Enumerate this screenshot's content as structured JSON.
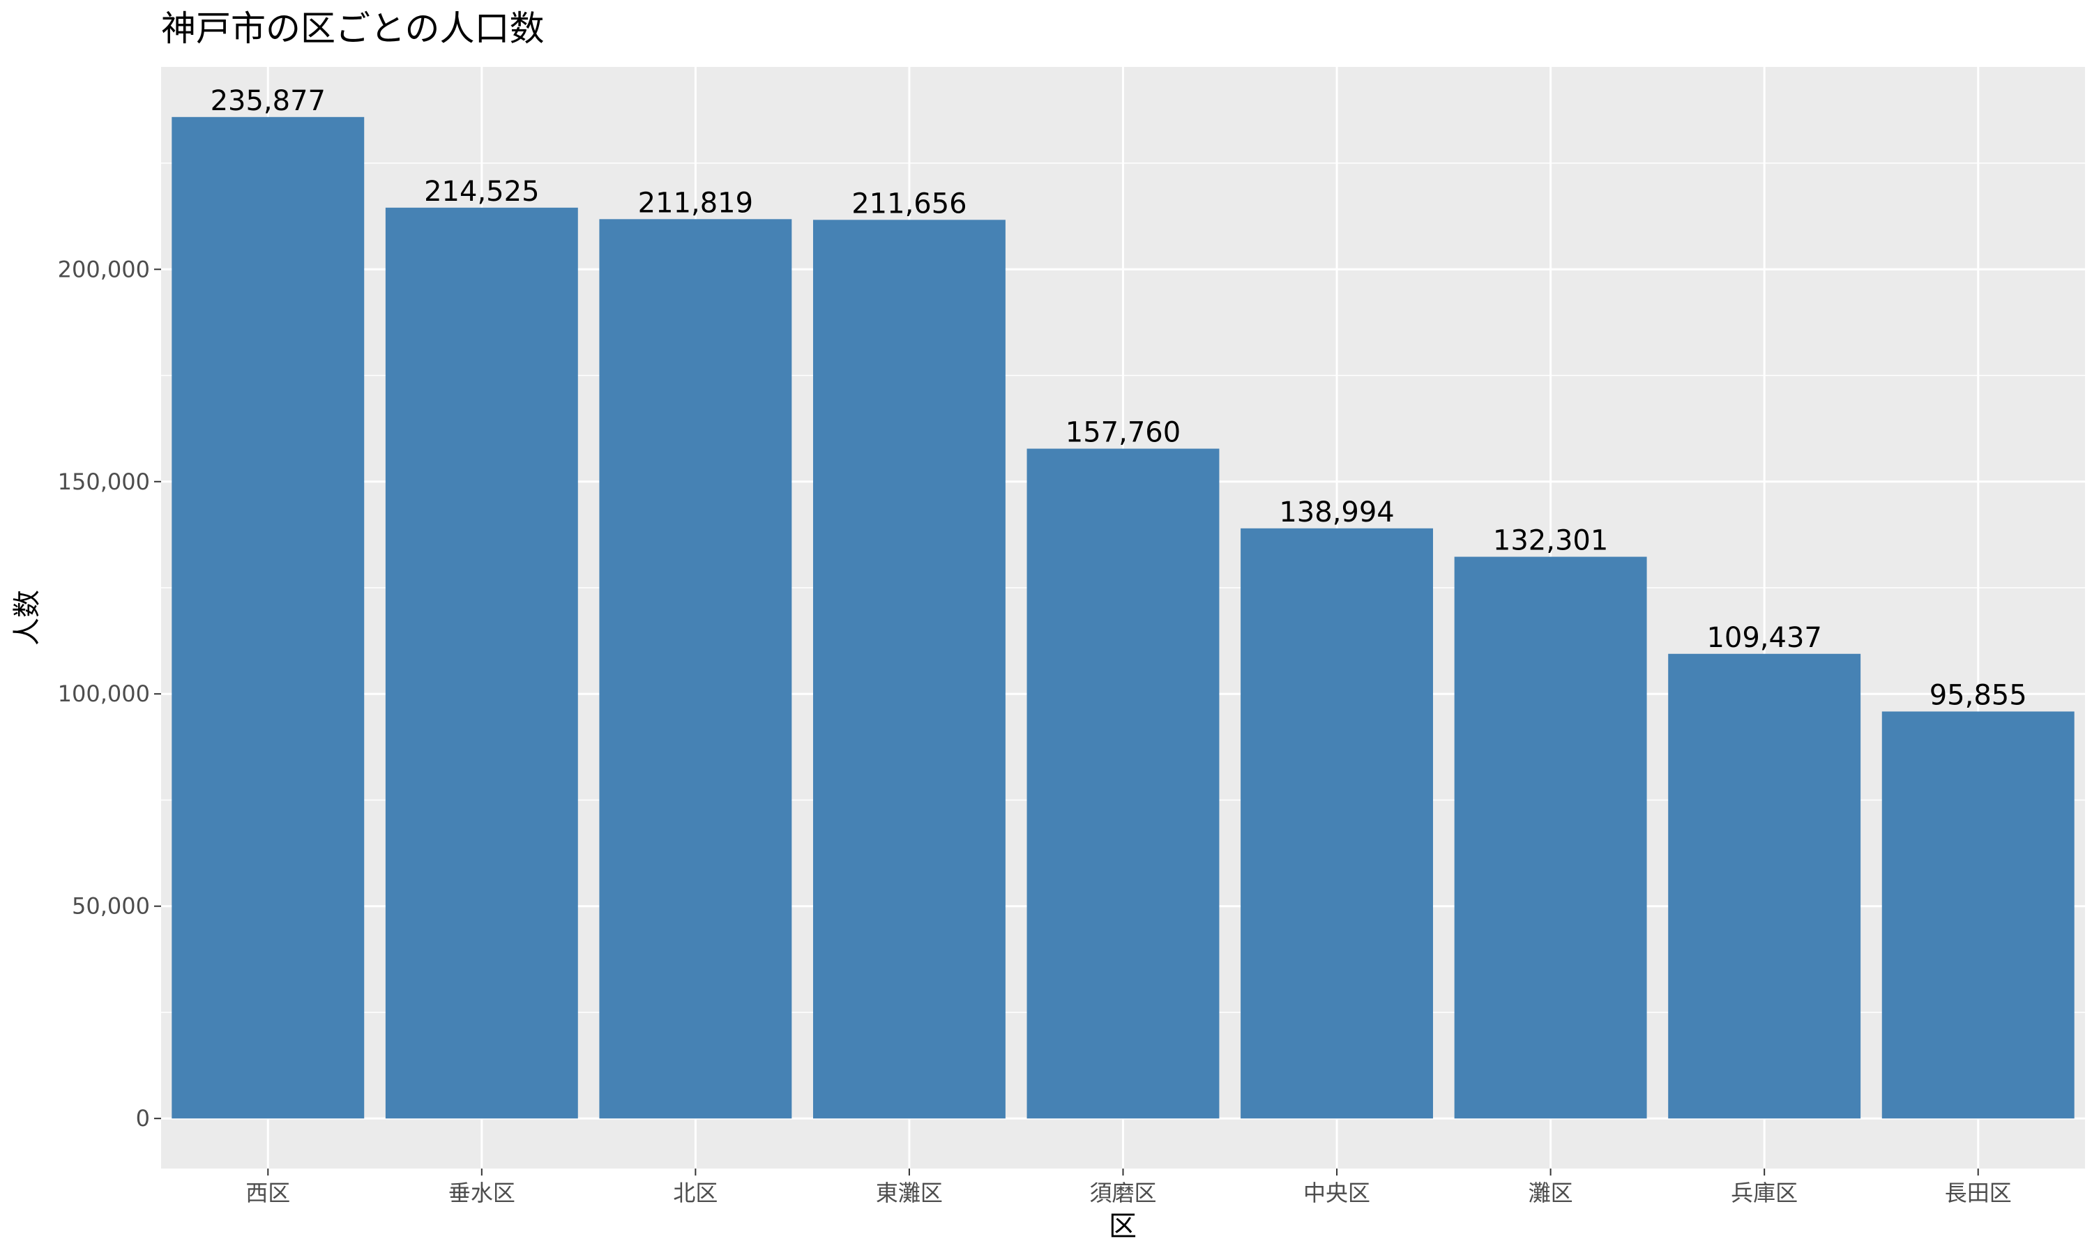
{
  "chart_data": {
    "type": "bar",
    "title": "神戸市の区ごとの人口数",
    "xlabel": "区",
    "ylabel": "人数",
    "categories": [
      "西区",
      "垂水区",
      "北区",
      "東灘区",
      "須磨区",
      "中央区",
      "灘区",
      "兵庫区",
      "長田区"
    ],
    "values": [
      235877,
      214525,
      211819,
      211656,
      157760,
      138994,
      132301,
      109437,
      95855
    ],
    "data_labels": [
      "235,877",
      "214,525",
      "211,819",
      "211,656",
      "157,760",
      "138,994",
      "132,301",
      "109,437",
      "95,855"
    ],
    "ylim": [
      -11794,
      247671
    ],
    "yticks": [
      0,
      50000,
      100000,
      150000,
      200000
    ],
    "ytick_labels": [
      "0",
      "50,000",
      "100,000",
      "150,000",
      "200,000"
    ],
    "bar_color": "#4682b4",
    "panel_color": "#ebebeb",
    "grid": true,
    "legend": "none"
  }
}
